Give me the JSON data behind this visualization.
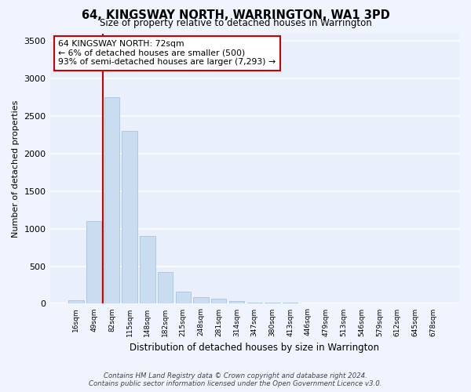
{
  "title": "64, KINGSWAY NORTH, WARRINGTON, WA1 3PD",
  "subtitle": "Size of property relative to detached houses in Warrington",
  "xlabel": "Distribution of detached houses by size in Warrington",
  "ylabel": "Number of detached properties",
  "categories": [
    "16sqm",
    "49sqm",
    "82sqm",
    "115sqm",
    "148sqm",
    "182sqm",
    "215sqm",
    "248sqm",
    "281sqm",
    "314sqm",
    "347sqm",
    "380sqm",
    "413sqm",
    "446sqm",
    "479sqm",
    "513sqm",
    "546sqm",
    "579sqm",
    "612sqm",
    "645sqm",
    "678sqm"
  ],
  "values": [
    50,
    1100,
    2750,
    2300,
    900,
    420,
    160,
    90,
    70,
    40,
    20,
    15,
    10,
    5,
    3,
    2,
    1,
    1,
    0,
    0,
    0
  ],
  "bar_color": "#c9dcf0",
  "bar_edge_color": "#a8c4e0",
  "highlight_line_color": "#cc0000",
  "annotation_text": "64 KINGSWAY NORTH: 72sqm\n← 6% of detached houses are smaller (500)\n93% of semi-detached houses are larger (7,293) →",
  "annotation_box_color": "#ffffff",
  "annotation_box_edge_color": "#cc0000",
  "background_color": "#f0f4ff",
  "plot_bg_color": "#eaf0fb",
  "grid_color": "#ffffff",
  "ylim": [
    0,
    3600
  ],
  "yticks": [
    0,
    500,
    1000,
    1500,
    2000,
    2500,
    3000,
    3500
  ],
  "footer_line1": "Contains HM Land Registry data © Crown copyright and database right 2024.",
  "footer_line2": "Contains public sector information licensed under the Open Government Licence v3.0."
}
